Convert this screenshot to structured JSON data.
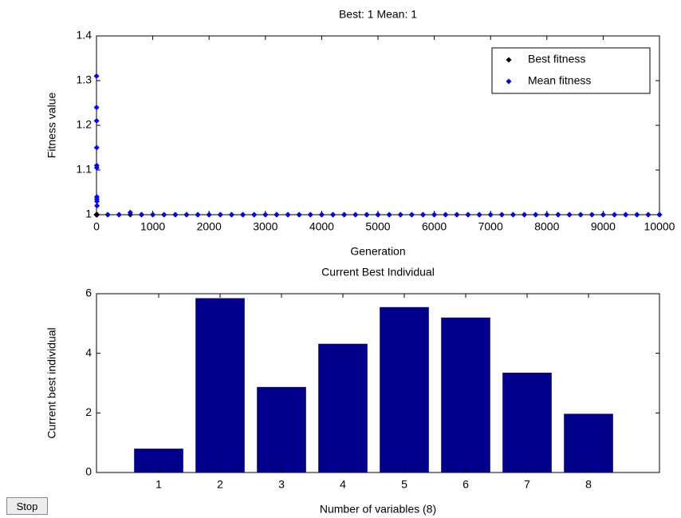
{
  "chart_data": [
    {
      "type": "scatter",
      "title": "Best: 1 Mean: 1",
      "x_label": "Generation",
      "y_label": "Fitness value",
      "x": [
        0,
        1,
        2,
        3,
        4,
        5,
        6,
        7,
        8,
        9,
        200,
        400,
        600,
        800,
        1000,
        1200,
        1400,
        1600,
        1800,
        2000,
        2200,
        2400,
        2600,
        2800,
        3000,
        3200,
        3400,
        3600,
        3800,
        4000,
        4200,
        4400,
        4600,
        4800,
        5000,
        5200,
        5400,
        5600,
        5800,
        6000,
        6200,
        6400,
        6600,
        6800,
        7000,
        7200,
        7400,
        7600,
        7800,
        8000,
        8200,
        8400,
        8600,
        8800,
        9000,
        9200,
        9400,
        9600,
        9800,
        10000
      ],
      "series": [
        {
          "name": "Best fitness",
          "color": "#000000",
          "values": [
            1,
            1,
            1,
            1,
            1,
            1,
            1,
            1,
            1,
            1,
            1,
            1,
            1,
            1,
            1,
            1,
            1,
            1,
            1,
            1,
            1,
            1,
            1,
            1,
            1,
            1,
            1,
            1,
            1,
            1,
            1,
            1,
            1,
            1,
            1,
            1,
            1,
            1,
            1,
            1,
            1,
            1,
            1,
            1,
            1,
            1,
            1,
            1,
            1,
            1,
            1,
            1,
            1,
            1,
            1,
            1,
            1,
            1,
            1,
            1
          ]
        },
        {
          "name": "Mean fitness",
          "color": "#0000ff",
          "values": [
            1.31,
            1.24,
            1.21,
            1.15,
            1.11,
            1.105,
            1.04,
            1.035,
            1.03,
            1.02,
            1,
            1,
            1.005,
            1,
            1,
            1,
            1,
            1,
            1,
            1,
            1,
            1,
            1,
            1,
            1,
            1,
            1,
            1,
            1,
            1,
            1,
            1,
            1,
            1,
            1,
            1,
            1,
            1,
            1,
            1,
            1,
            1,
            1,
            1,
            1,
            1,
            1,
            1,
            1,
            1,
            1,
            1,
            1,
            1,
            1,
            1,
            1,
            1,
            1,
            1
          ]
        }
      ],
      "xlim": [
        0,
        10000
      ],
      "xticks": [
        0,
        1000,
        2000,
        3000,
        4000,
        5000,
        6000,
        7000,
        8000,
        9000,
        10000
      ],
      "ylim": [
        1,
        1.4
      ],
      "yticks": [
        1,
        1.1,
        1.2,
        1.3,
        1.4
      ],
      "legend": "upper right"
    },
    {
      "type": "bar",
      "title": "Current Best Individual",
      "x_label": "Number of variables (8)",
      "y_label": "Current best individual",
      "categories": [
        "1",
        "2",
        "3",
        "4",
        "5",
        "6",
        "7",
        "8"
      ],
      "values": [
        0.8,
        5.85,
        2.87,
        4.32,
        5.55,
        5.2,
        3.35,
        1.97
      ],
      "color": "#00008b",
      "ylim": [
        0,
        6
      ],
      "yticks": [
        0,
        2,
        4,
        6
      ]
    }
  ],
  "button": {
    "label": "Stop"
  }
}
